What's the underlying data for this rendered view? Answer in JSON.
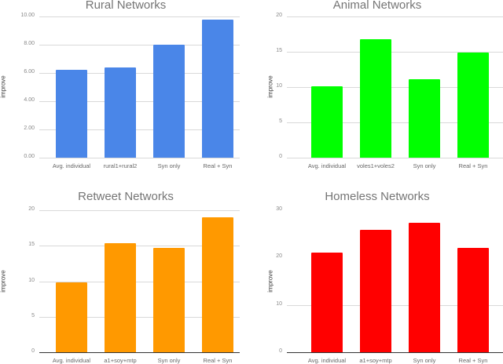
{
  "chart_data": [
    {
      "type": "bar",
      "title": "Rural Networks",
      "xlabel": "",
      "ylabel": "improve",
      "categories": [
        "Avg. individual",
        "rural1+rural2",
        "Syn only",
        "Real + Syn"
      ],
      "values": [
        6.2,
        6.4,
        8.0,
        9.8
      ],
      "yticks": [
        "0.00",
        "2.00",
        "4.00",
        "6.00",
        "8.00",
        "10.00"
      ],
      "ylim": [
        0,
        10
      ],
      "color": "#4a86e8",
      "grid": true
    },
    {
      "type": "bar",
      "title": "Animal Networks",
      "xlabel": "",
      "ylabel": "improve",
      "categories": [
        "Avg. individual",
        "voles1+voles2",
        "Syn only",
        "Real + Syn"
      ],
      "values": [
        10.1,
        16.8,
        11.1,
        14.9
      ],
      "yticks": [
        "0",
        "5",
        "10",
        "15",
        "20"
      ],
      "ylim": [
        0,
        20
      ],
      "color": "#00ff00",
      "grid": true
    },
    {
      "type": "bar",
      "title": "Retweet Networks",
      "xlabel": "",
      "ylabel": "improve",
      "categories": [
        "Avg. individual",
        "a1+soy+mtp",
        "Syn only",
        "Real + Syn"
      ],
      "values": [
        9.8,
        15.4,
        14.7,
        19.0
      ],
      "yticks": [
        "0",
        "5",
        "10",
        "15",
        "20"
      ],
      "ylim": [
        0,
        20
      ],
      "color": "#ff9900",
      "grid": true
    },
    {
      "type": "bar",
      "title": "Homeless Networks",
      "xlabel": "",
      "ylabel": "improve",
      "categories": [
        "Avg. individual",
        "a1+soy+mtp",
        "Syn only",
        "Real + Syn"
      ],
      "values": [
        21.0,
        25.9,
        27.4,
        22.0
      ],
      "yticks": [
        "0",
        "10",
        "20",
        "30"
      ],
      "ylim": [
        0,
        30
      ],
      "color": "#ff0000",
      "grid": true
    }
  ]
}
